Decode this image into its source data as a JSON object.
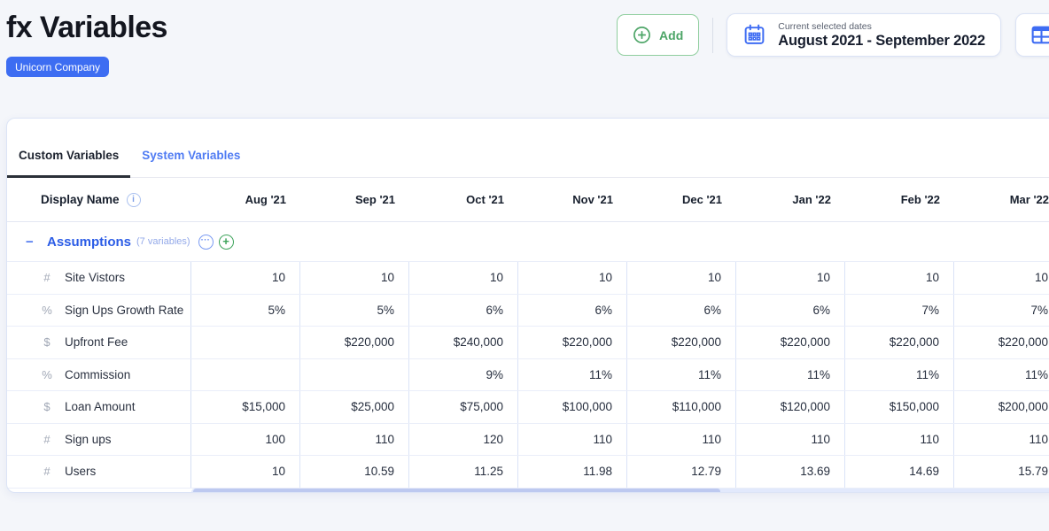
{
  "page": {
    "title": "fx Variables",
    "company_badge": "Unicorn Company"
  },
  "toolbar": {
    "add_label": "Add",
    "date_label": "Current selected dates",
    "date_value": "August 2021 - September 2022"
  },
  "tabs": [
    {
      "label": "Custom Variables",
      "active": true
    },
    {
      "label": "System Variables",
      "active": false
    }
  ],
  "table": {
    "display_name_header": "Display Name",
    "columns": [
      "Aug '21",
      "Sep '21",
      "Oct '21",
      "Nov '21",
      "Dec '21",
      "Jan '22",
      "Feb '22",
      "Mar '22"
    ],
    "type_icons": {
      "number": "#",
      "percent": "%",
      "currency": "$"
    },
    "group": {
      "collapse_glyph": "−",
      "name": "Assumptions",
      "count_label": "(7 variables)",
      "more_glyph": "···",
      "add_glyph": "+"
    },
    "rows": [
      {
        "type": "number",
        "name": "Site Vistors",
        "values": [
          "10",
          "10",
          "10",
          "10",
          "10",
          "10",
          "10",
          "10"
        ]
      },
      {
        "type": "percent",
        "name": "Sign Ups Growth Rate",
        "values": [
          "5%",
          "5%",
          "6%",
          "6%",
          "6%",
          "6%",
          "7%",
          "7%"
        ]
      },
      {
        "type": "currency",
        "name": "Upfront Fee",
        "values": [
          "",
          "$220,000",
          "$240,000",
          "$220,000",
          "$220,000",
          "$220,000",
          "$220,000",
          "$220,000"
        ]
      },
      {
        "type": "percent",
        "name": "Commission",
        "values": [
          "",
          "",
          "9%",
          "11%",
          "11%",
          "11%",
          "11%",
          "11%"
        ]
      },
      {
        "type": "currency",
        "name": "Loan Amount",
        "values": [
          "$15,000",
          "$25,000",
          "$75,000",
          "$100,000",
          "$110,000",
          "$120,000",
          "$150,000",
          "$200,000"
        ]
      },
      {
        "type": "number",
        "name": "Sign ups",
        "values": [
          "100",
          "110",
          "120",
          "110",
          "110",
          "110",
          "110",
          "110"
        ]
      },
      {
        "type": "number",
        "name": "Users",
        "values": [
          "10",
          "10.59",
          "11.25",
          "11.98",
          "12.79",
          "13.69",
          "14.69",
          "15.79"
        ]
      }
    ]
  },
  "colors": {
    "accent_blue": "#3e6cf3",
    "badge_blue": "#3d6df2",
    "group_blue": "#2b5ce6",
    "accent_green": "#43a45c",
    "page_background": "#f4f6fa"
  }
}
